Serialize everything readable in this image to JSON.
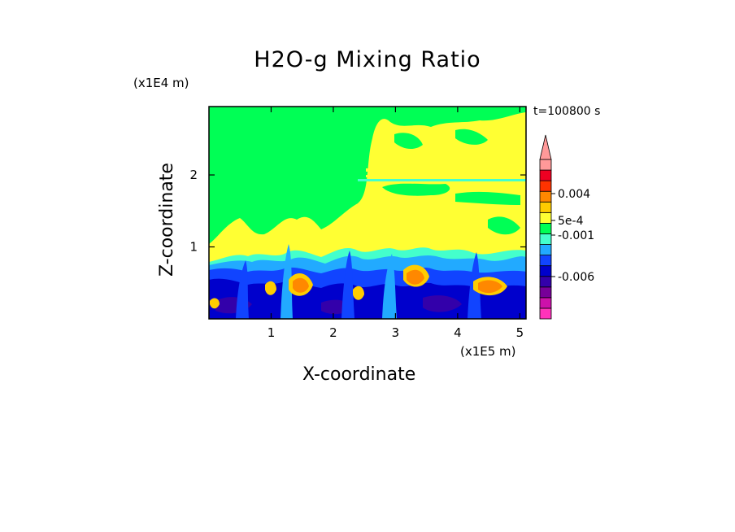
{
  "chart_data": {
    "type": "heatmap",
    "title": "H2O-g Mixing Ratio",
    "xlabel": "X-coordinate",
    "ylabel": "Z-coordinate",
    "x_unit": "(x1E5 m)",
    "y_unit": "(x1E4 m)",
    "annotation": "t=100800 s",
    "xlim": [
      0,
      5.1
    ],
    "ylim": [
      0,
      2.95
    ],
    "x_ticks": [
      1,
      2,
      3,
      4,
      5
    ],
    "y_ticks": [
      1,
      2
    ],
    "colorbar": {
      "labels": [
        {
          "text": "0.004",
          "value": 0.004
        },
        {
          "text": "5e-4",
          "value": 0.0005
        },
        {
          "text": "-0.001",
          "value": -0.001
        },
        {
          "text": "-0.006",
          "value": -0.006
        }
      ],
      "levels": [
        "#ff33bb",
        "#cc11aa",
        "#770099",
        "#3300aa",
        "#0000cc",
        "#1144ff",
        "#22aaff",
        "#44ffcc",
        "#00ff55",
        "#ffff33",
        "#ffcc00",
        "#ff8800",
        "#ff3300",
        "#ee0022",
        "#ff9999"
      ]
    },
    "field_description": {
      "upper_layer": "#00ff55",
      "mid_layer": "#ffff33",
      "boundary_layer": [
        "#0000cc",
        "#1144ff",
        "#22aaff",
        "#ff8800"
      ]
    }
  }
}
